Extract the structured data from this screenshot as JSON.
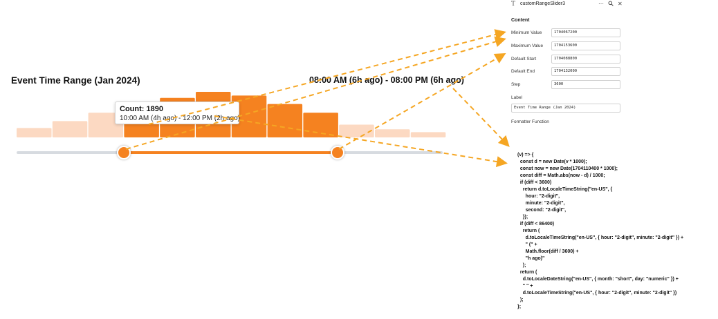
{
  "chart": {
    "title": "Event Time Range (Jan 2024)",
    "selected_range_text": "08:00 AM (6h ago) - 08:00 PM (6h ago)",
    "tooltip": {
      "count_text": "Count: 1890",
      "range_text": "10:00 AM (4h ago) - 12:00 PM (2h ago)"
    }
  },
  "chart_data": {
    "type": "bar",
    "title": "Event Time Range (Jan 2024)",
    "x_unit": "unix_seconds",
    "bin_width": 7200,
    "bins_start": [
      1704067200,
      1704074400,
      1704081600,
      1704088800,
      1704096000,
      1704103200,
      1704110400,
      1704117600,
      1704124800,
      1704132000,
      1704139200,
      1704146400
    ],
    "values": [
      450,
      780,
      1180,
      1710,
      1890,
      2180,
      2000,
      1600,
      1180,
      610,
      390,
      250
    ],
    "selected_range": [
      1704088800,
      1704132000
    ],
    "hovered_bin_index": 4,
    "selected_color": "#f58220",
    "unselected_color": "#fcd9c2"
  },
  "slider": {
    "min": 1704067200,
    "max": 1704153600,
    "start": 1704088800,
    "end": 1704132000,
    "step": 3600
  },
  "panel": {
    "component_name": "customRangeSlider3",
    "type_icon": "text-type-icon",
    "header_icons": [
      "more-icon",
      "search-icon",
      "close-icon"
    ],
    "section_title": "Content",
    "fields": [
      {
        "label": "Minimum Value",
        "value": "1704067200"
      },
      {
        "label": "Maximum Value",
        "value": "1704153600"
      },
      {
        "label": "Default Start",
        "value": "1704088800"
      },
      {
        "label": "Default End",
        "value": "1704132000"
      },
      {
        "label": "Step",
        "value": "3600"
      }
    ],
    "label_caption": "Label",
    "label_value": "Event Time Range (Jan 2024)",
    "formatter_caption": "Formatter Function"
  },
  "code": {
    "text": "(v) => {\n  const d = new Date(v * 1000);\n  const now = new Date(1704110400 * 1000);\n  const diff = Math.abs(now - d) / 1000;\n  if (diff < 3600)\n    return d.toLocaleTimeString(\"en-US\", {\n      hour: \"2-digit\",\n      minute: \"2-digit\",\n      second: \"2-digit\",\n    });\n  if (diff < 86400)\n    return (\n      d.toLocaleTimeString(\"en-US\", { hour: \"2-digit\", minute: \"2-digit\" }) +\n      \" (\" +\n      Math.floor(diff / 3600) +\n      \"h ago)\"\n    );\n  return (\n    d.toLocaleDateString(\"en-US\", { month: \"short\", day: \"numeric\" }) +\n    \" \" +\n    d.toLocaleTimeString(\"en-US\", { hour: \"2-digit\", minute: \"2-digit\" })\n  );\n};"
  },
  "annotation": {
    "arrow_color": "#f5a623"
  }
}
